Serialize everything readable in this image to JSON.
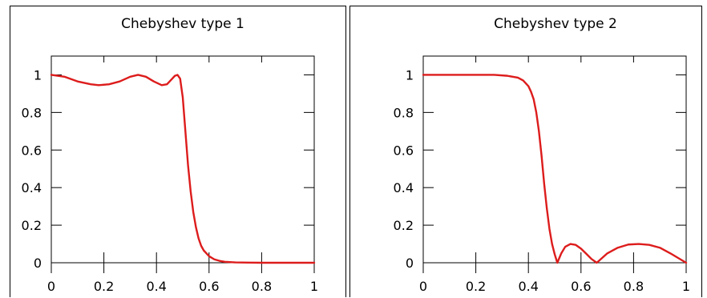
{
  "chart_data": [
    {
      "type": "line",
      "title": "Chebyshev type 1",
      "xlabel": "",
      "ylabel": "",
      "xlim": [
        0,
        1
      ],
      "ylim": [
        0,
        1.1
      ],
      "grid": false,
      "x_ticks": [
        "0",
        "0.2",
        "0.4",
        "0.6",
        "0.8",
        "1"
      ],
      "y_ticks": [
        "0",
        "0.2",
        "0.4",
        "0.6",
        "0.8",
        "1"
      ],
      "line_color": "#dd1c1c",
      "series": [
        {
          "x": [
            0,
            0.05,
            0.1,
            0.15,
            0.18,
            0.22,
            0.26,
            0.3,
            0.33,
            0.36,
            0.39,
            0.42,
            0.44,
            0.46,
            0.47,
            0.48,
            0.49,
            0.5,
            0.51,
            0.52,
            0.53,
            0.54,
            0.55,
            0.56,
            0.57,
            0.58,
            0.6,
            0.62,
            0.64,
            0.66,
            0.7,
            0.75,
            0.8,
            0.9,
            1.0
          ],
          "y": [
            1.0,
            0.99,
            0.965,
            0.95,
            0.945,
            0.95,
            0.965,
            0.99,
            1.0,
            0.99,
            0.965,
            0.945,
            0.95,
            0.98,
            0.995,
            1.0,
            0.98,
            0.88,
            0.7,
            0.52,
            0.38,
            0.27,
            0.19,
            0.13,
            0.09,
            0.065,
            0.035,
            0.018,
            0.01,
            0.005,
            0.002,
            0.001,
            0,
            0,
            0
          ]
        }
      ]
    },
    {
      "type": "line",
      "title": "Chebyshev type 2",
      "xlabel": "",
      "ylabel": "",
      "xlim": [
        0,
        1
      ],
      "ylim": [
        0,
        1.1
      ],
      "grid": false,
      "x_ticks": [
        "0",
        "0.2",
        "0.4",
        "0.6",
        "0.8",
        "1"
      ],
      "y_ticks": [
        "0",
        "0.2",
        "0.4",
        "0.6",
        "0.8",
        "1"
      ],
      "line_color": "#dd1c1c",
      "series": [
        {
          "x": [
            0,
            0.1,
            0.2,
            0.27,
            0.32,
            0.36,
            0.38,
            0.4,
            0.41,
            0.42,
            0.43,
            0.44,
            0.45,
            0.46,
            0.47,
            0.48,
            0.49,
            0.5,
            0.51,
            0.525,
            0.54,
            0.56,
            0.58,
            0.6,
            0.62,
            0.64,
            0.66,
            0.68,
            0.7,
            0.74,
            0.78,
            0.82,
            0.86,
            0.9,
            0.94,
            0.97,
            1.0
          ],
          "y": [
            1.0,
            1.0,
            1.0,
            1.0,
            0.995,
            0.985,
            0.97,
            0.94,
            0.91,
            0.87,
            0.8,
            0.7,
            0.57,
            0.42,
            0.29,
            0.18,
            0.1,
            0.045,
            0.0,
            0.05,
            0.085,
            0.1,
            0.095,
            0.075,
            0.048,
            0.02,
            0.0,
            0.025,
            0.05,
            0.08,
            0.097,
            0.1,
            0.095,
            0.08,
            0.05,
            0.025,
            0.0
          ]
        }
      ]
    }
  ]
}
